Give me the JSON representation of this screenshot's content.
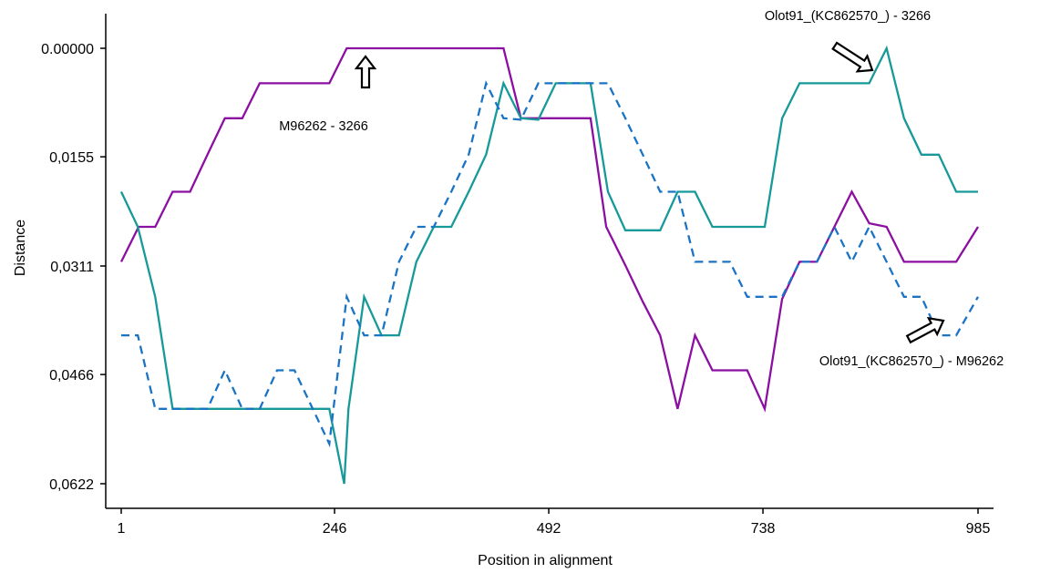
{
  "chart_data": {
    "type": "line",
    "title": "",
    "xlabel": "Position in alignment",
    "ylabel": "Distance",
    "xlim": [
      1,
      985
    ],
    "ylim": [
      0,
      0.0622
    ],
    "y_inverted": true,
    "x_ticks": [
      1,
      246,
      492,
      738,
      985
    ],
    "x_tick_labels": [
      "1",
      "246",
      "492",
      "738",
      "985"
    ],
    "y_ticks": [
      0,
      0.0155,
      0.0311,
      0.0466,
      0.0622
    ],
    "y_tick_labels": [
      "0.00000",
      "0,0155",
      "0,0311",
      "0,0466",
      "0,0622"
    ],
    "grid": false,
    "series": [
      {
        "color": "#8B0FA0",
        "dashed": false,
        "points": [
          [
            1,
            0.0305
          ],
          [
            21,
            0.0255
          ],
          [
            40,
            0.0255
          ],
          [
            60,
            0.0205
          ],
          [
            80,
            0.0205
          ],
          [
            100,
            0.0152
          ],
          [
            120,
            0.01
          ],
          [
            140,
            0.01
          ],
          [
            160,
            0.005
          ],
          [
            180,
            0.005
          ],
          [
            200,
            0.005
          ],
          [
            240,
            0.005
          ],
          [
            260,
            0.0
          ],
          [
            440,
            0.0
          ],
          [
            460,
            0.01
          ],
          [
            540,
            0.01
          ],
          [
            558,
            0.0255
          ],
          [
            580,
            0.031
          ],
          [
            600,
            0.0362
          ],
          [
            620,
            0.041
          ],
          [
            640,
            0.0515
          ],
          [
            660,
            0.041
          ],
          [
            680,
            0.046
          ],
          [
            700,
            0.046
          ],
          [
            720,
            0.046
          ],
          [
            740,
            0.0515
          ],
          [
            760,
            0.0358
          ],
          [
            780,
            0.0305
          ],
          [
            800,
            0.0305
          ],
          [
            820,
            0.0255
          ],
          [
            840,
            0.0205
          ],
          [
            860,
            0.025
          ],
          [
            880,
            0.0255
          ],
          [
            900,
            0.0305
          ],
          [
            940,
            0.0305
          ],
          [
            960,
            0.0305
          ],
          [
            985,
            0.0255
          ]
        ]
      },
      {
        "color": "#17999A",
        "dashed": false,
        "points": [
          [
            1,
            0.0205
          ],
          [
            20,
            0.0255
          ],
          [
            40,
            0.0355
          ],
          [
            60,
            0.0515
          ],
          [
            240,
            0.0515
          ],
          [
            257,
            0.0622
          ],
          [
            262,
            0.0515
          ],
          [
            280,
            0.0355
          ],
          [
            300,
            0.041
          ],
          [
            320,
            0.041
          ],
          [
            340,
            0.0305
          ],
          [
            360,
            0.0255
          ],
          [
            380,
            0.0255
          ],
          [
            400,
            0.0205
          ],
          [
            420,
            0.0152
          ],
          [
            440,
            0.005
          ],
          [
            460,
            0.01
          ],
          [
            480,
            0.0102
          ],
          [
            500,
            0.005
          ],
          [
            540,
            0.005
          ],
          [
            560,
            0.0205
          ],
          [
            580,
            0.026
          ],
          [
            600,
            0.026
          ],
          [
            620,
            0.026
          ],
          [
            640,
            0.0205
          ],
          [
            660,
            0.0205
          ],
          [
            680,
            0.0255
          ],
          [
            700,
            0.0255
          ],
          [
            740,
            0.0255
          ],
          [
            760,
            0.01
          ],
          [
            780,
            0.005
          ],
          [
            800,
            0.005
          ],
          [
            860,
            0.005
          ],
          [
            880,
            0.0
          ],
          [
            900,
            0.01
          ],
          [
            920,
            0.0152
          ],
          [
            940,
            0.0152
          ],
          [
            960,
            0.0205
          ],
          [
            985,
            0.0205
          ]
        ]
      },
      {
        "color": "#1B73C4",
        "dashed": true,
        "points": [
          [
            1,
            0.041
          ],
          [
            20,
            0.041
          ],
          [
            40,
            0.0515
          ],
          [
            100,
            0.0515
          ],
          [
            120,
            0.046
          ],
          [
            140,
            0.0515
          ],
          [
            160,
            0.0515
          ],
          [
            180,
            0.046
          ],
          [
            200,
            0.046
          ],
          [
            240,
            0.0565
          ],
          [
            260,
            0.0355
          ],
          [
            280,
            0.041
          ],
          [
            300,
            0.041
          ],
          [
            320,
            0.0305
          ],
          [
            340,
            0.0255
          ],
          [
            360,
            0.0255
          ],
          [
            380,
            0.0205
          ],
          [
            400,
            0.0152
          ],
          [
            420,
            0.005
          ],
          [
            440,
            0.01
          ],
          [
            460,
            0.0102
          ],
          [
            480,
            0.005
          ],
          [
            520,
            0.005
          ],
          [
            540,
            0.005
          ],
          [
            560,
            0.005
          ],
          [
            580,
            0.01
          ],
          [
            600,
            0.0152
          ],
          [
            620,
            0.0205
          ],
          [
            640,
            0.0205
          ],
          [
            660,
            0.0305
          ],
          [
            680,
            0.0305
          ],
          [
            700,
            0.0305
          ],
          [
            720,
            0.0355
          ],
          [
            760,
            0.0355
          ],
          [
            780,
            0.0305
          ],
          [
            800,
            0.0305
          ],
          [
            820,
            0.0255
          ],
          [
            840,
            0.0305
          ],
          [
            860,
            0.0255
          ],
          [
            880,
            0.0305
          ],
          [
            900,
            0.0355
          ],
          [
            920,
            0.0355
          ],
          [
            940,
            0.041
          ],
          [
            960,
            0.041
          ],
          [
            985,
            0.0355
          ]
        ]
      }
    ],
    "annotations": [
      {
        "text": "M96262 - 3266",
        "arrow_direction": "up",
        "target": [
          280,
          0.0
        ]
      },
      {
        "text": "Olot91_(KC862570_) - 3266",
        "arrow_direction": "down-right",
        "target": [
          860,
          0.0015
        ]
      },
      {
        "text": "Olot91_(KC862570_) - M96262",
        "arrow_direction": "up-right",
        "target": [
          900,
          0.0385
        ]
      }
    ]
  }
}
